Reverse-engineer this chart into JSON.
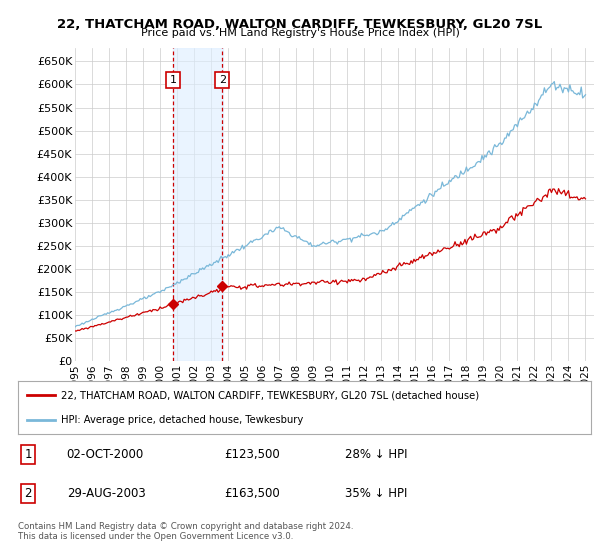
{
  "title": "22, THATCHAM ROAD, WALTON CARDIFF, TEWKESBURY, GL20 7SL",
  "subtitle": "Price paid vs. HM Land Registry's House Price Index (HPI)",
  "ylim": [
    0,
    680000
  ],
  "yticks": [
    0,
    50000,
    100000,
    150000,
    200000,
    250000,
    300000,
    350000,
    400000,
    450000,
    500000,
    550000,
    600000,
    650000
  ],
  "ytick_labels": [
    "£0",
    "£50K",
    "£100K",
    "£150K",
    "£200K",
    "£250K",
    "£300K",
    "£350K",
    "£400K",
    "£450K",
    "£500K",
    "£550K",
    "£600K",
    "£650K"
  ],
  "hpi_color": "#7ab8d9",
  "price_color": "#cc0000",
  "vline_color": "#cc0000",
  "vshade_color": "#ddeeff",
  "point1_year": 2000.75,
  "point1_value": 123500,
  "point2_year": 2003.66,
  "point2_value": 163500,
  "legend_line1": "22, THATCHAM ROAD, WALTON CARDIFF, TEWKESBURY, GL20 7SL (detached house)",
  "legend_line2": "HPI: Average price, detached house, Tewkesbury",
  "table_row1": [
    "1",
    "02-OCT-2000",
    "£123,500",
    "28% ↓ HPI"
  ],
  "table_row2": [
    "2",
    "29-AUG-2003",
    "£163,500",
    "35% ↓ HPI"
  ],
  "footer": "Contains HM Land Registry data © Crown copyright and database right 2024.\nThis data is licensed under the Open Government Licence v3.0.",
  "background_color": "#ffffff",
  "grid_color": "#cccccc"
}
